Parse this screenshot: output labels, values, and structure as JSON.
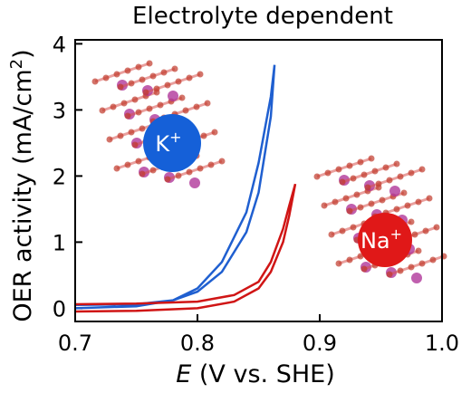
{
  "chart_data": {
    "type": "line",
    "title": "Electrolyte dependent",
    "xlabel": {
      "italic": "E",
      "rest": " (V vs. SHE)"
    },
    "ylabel": {
      "before": "OER activity (mA/cm",
      "sup": "2",
      "after": ")"
    },
    "xlim": [
      0.7,
      1.0
    ],
    "ylim": [
      -0.2,
      4.06
    ],
    "xticks": [
      0.7,
      0.8,
      0.9,
      {
        "value": 1.0,
        "label": "1.0"
      }
    ],
    "yticks": [
      0,
      1,
      2,
      3,
      4
    ],
    "series": [
      {
        "color": "#1f5fd0",
        "x": [
          0.7,
          0.75,
          0.78,
          0.8,
          0.82,
          0.84,
          0.85,
          0.86,
          0.863,
          0.86,
          0.85,
          0.84,
          0.82,
          0.8,
          0.78,
          0.75,
          0.7
        ],
        "values": [
          0.05,
          0.06,
          0.12,
          0.25,
          0.55,
          1.15,
          1.75,
          2.9,
          3.68,
          3.2,
          2.2,
          1.45,
          0.7,
          0.3,
          0.12,
          0.03,
          0.0
        ]
      },
      {
        "color": "#d01515",
        "x": [
          0.7,
          0.75,
          0.8,
          0.83,
          0.85,
          0.86,
          0.87,
          0.875,
          0.88,
          0.875,
          0.87,
          0.86,
          0.85,
          0.83,
          0.8,
          0.75,
          0.7
        ],
        "values": [
          -0.05,
          -0.04,
          0.0,
          0.1,
          0.3,
          0.55,
          1.0,
          1.4,
          1.88,
          1.55,
          1.2,
          0.7,
          0.4,
          0.2,
          0.1,
          0.07,
          0.06
        ]
      }
    ],
    "ion_labels": [
      {
        "symbol": "K",
        "charge": "+",
        "color": "#1560d8"
      },
      {
        "symbol": "Na",
        "charge": "+",
        "color": "#e01818"
      }
    ]
  }
}
